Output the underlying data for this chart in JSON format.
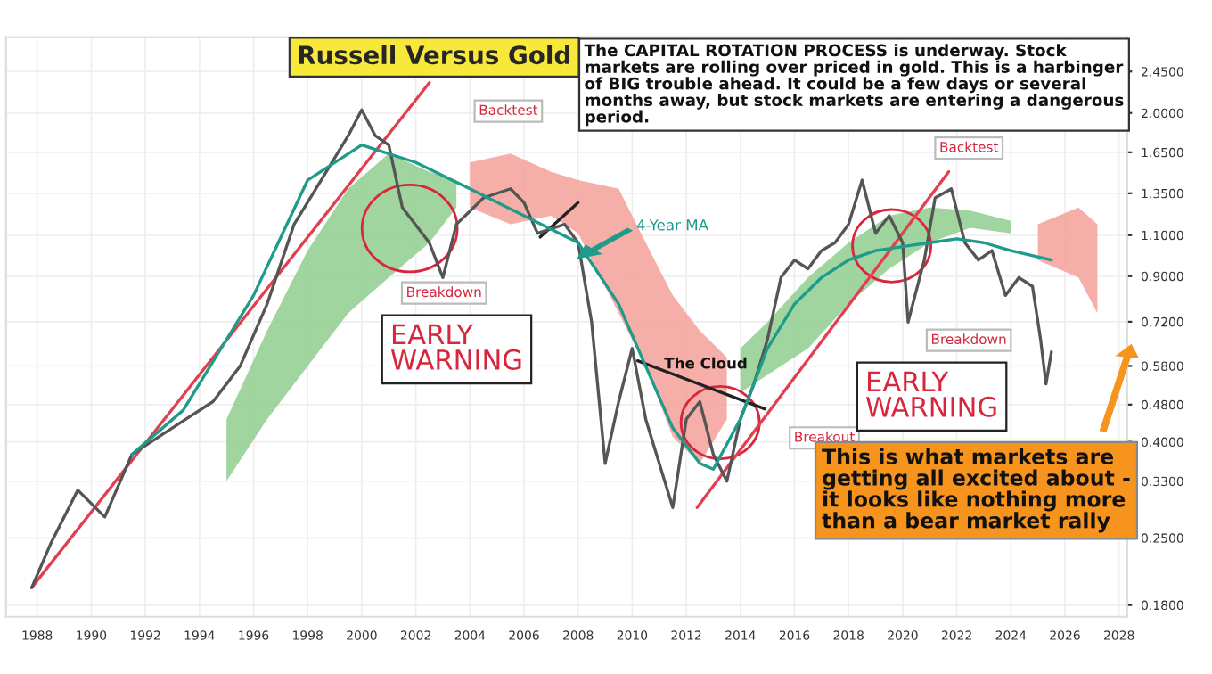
{
  "chart_data": {
    "type": "line",
    "title": "Russell Versus Gold",
    "log": true,
    "grid": true,
    "legend": false,
    "xlim": [
      1986.85,
      2028.3
    ],
    "xticks": [
      1988,
      1990,
      1992,
      1994,
      1996,
      1998,
      2000,
      2002,
      2004,
      2006,
      2008,
      2010,
      2012,
      2014,
      2016,
      2018,
      2020,
      2022,
      2024,
      2026,
      2028
    ],
    "ylim": [
      0.17,
      2.9
    ],
    "yticks": [
      {
        "value": 0.18,
        "label": "0.1800"
      },
      {
        "value": 0.25,
        "label": "0.2500"
      },
      {
        "value": 0.33,
        "label": "0.3300"
      },
      {
        "value": 0.4,
        "label": "0.4000"
      },
      {
        "value": 0.48,
        "label": "0.4800"
      },
      {
        "value": 0.58,
        "label": "0.5800"
      },
      {
        "value": 0.72,
        "label": "0.7200"
      },
      {
        "value": 0.9,
        "label": "0.9000"
      },
      {
        "value": 1.1,
        "label": "1.1000"
      },
      {
        "value": 1.35,
        "label": "1.3500"
      },
      {
        "value": 1.65,
        "label": "1.6500"
      },
      {
        "value": 2.0,
        "label": "2.0000"
      },
      {
        "value": 2.45,
        "label": "2.4500"
      }
    ],
    "series": [
      {
        "type": "area",
        "color": "#8fce8f",
        "x": [
          1995,
          1996.5,
          1998,
          1999.5,
          2001,
          2002.5,
          2003.5
        ],
        "values": [
          null,
          null,
          null,
          null,
          null,
          null,
          null
        ],
        "upper": [
          0.447,
          0.689,
          1.02,
          1.38,
          1.64,
          1.5,
          1.44
        ],
        "lower": [
          0.33,
          0.447,
          0.579,
          0.751,
          0.894,
          1.06,
          1.26
        ]
      },
      {
        "type": "area",
        "color": "#f4a09a",
        "x": [
          2004,
          2005.5,
          2007,
          2008,
          2009.5,
          2010.5,
          2011.5,
          2012.5,
          2013.5
        ],
        "values": [
          null,
          null,
          null,
          null,
          null,
          null,
          null,
          null,
          null
        ],
        "upper": [
          1.57,
          1.64,
          1.5,
          1.44,
          1.38,
          1.06,
          0.819,
          0.689,
          0.605
        ],
        "lower": [
          1.26,
          1.16,
          1.21,
          1.11,
          0.751,
          0.579,
          0.41,
          0.36,
          0.447
        ]
      },
      {
        "type": "area",
        "color": "#8fce8f",
        "x": [
          2014,
          2015,
          2016.5,
          2018,
          2019.5,
          2021,
          2022.5,
          2024
        ],
        "values": [
          null,
          null,
          null,
          null,
          null,
          null,
          null,
          null
        ],
        "upper": [
          0.632,
          0.719,
          0.894,
          1.06,
          1.21,
          1.26,
          1.24,
          1.18
        ],
        "lower": [
          0.509,
          0.555,
          0.632,
          0.785,
          0.933,
          1.06,
          1.14,
          1.11
        ]
      },
      {
        "type": "area",
        "color": "#f4a09a",
        "x": [
          2025,
          2026.5,
          2027.2
        ],
        "values": [
          null,
          null,
          null
        ],
        "upper": [
          1.16,
          1.26,
          1.16
        ],
        "lower": [
          0.974,
          0.894,
          0.751
        ]
      },
      {
        "color": "#e04050",
        "x": [
          1987.8,
          2002.5
        ],
        "values": [
          0.196,
          2.32
        ]
      },
      {
        "color": "#e04050",
        "x": [
          2012.4,
          2021.7
        ],
        "values": [
          0.29,
          1.5
        ]
      },
      {
        "color": "#222222",
        "x": [
          2006.6,
          2008.0
        ],
        "values": [
          1.09,
          1.29
        ]
      },
      {
        "color": "#222222",
        "x": [
          2010.2,
          2014.9
        ],
        "values": [
          0.595,
          0.47
        ]
      },
      {
        "color": "#555555",
        "x": [
          1987.8,
          1988.5,
          1989.5,
          1990.5,
          1991.5,
          1992.5,
          1993.5,
          1994.5,
          1995.5,
          1996.5,
          1997.5,
          1998.5,
          1999.5,
          2000.0,
          2000.5,
          2001,
          2001.5,
          2002.5,
          2003,
          2003.5,
          2004.5,
          2005.5,
          2006,
          2006.5,
          2007.5,
          2008,
          2008.5,
          2009,
          2009.5,
          2010,
          2010.5,
          2011.5,
          2012,
          2012.5,
          2013,
          2013.5,
          2014,
          2014.5,
          2015,
          2015.5,
          2016,
          2016.5,
          2017,
          2017.5,
          2018,
          2018.5,
          2019,
          2019.5,
          2020,
          2020.2,
          2020.8,
          2021.2,
          2021.8,
          2022.3,
          2022.8,
          2023.3,
          2023.8,
          2024.3,
          2024.8,
          2025.1,
          2025.3,
          2025.5
        ],
        "values": [
          0.196,
          0.243,
          0.316,
          0.277,
          0.376,
          0.41,
          0.447,
          0.487,
          0.579,
          0.785,
          1.16,
          1.44,
          1.79,
          2.03,
          1.79,
          1.71,
          1.26,
          1.06,
          0.894,
          1.16,
          1.32,
          1.38,
          1.29,
          1.11,
          1.16,
          1.06,
          0.719,
          0.36,
          0.487,
          0.632,
          0.447,
          0.29,
          0.447,
          0.487,
          0.376,
          0.33,
          0.447,
          0.531,
          0.66,
          0.894,
          0.974,
          0.933,
          1.02,
          1.06,
          1.16,
          1.44,
          1.11,
          1.21,
          1.06,
          0.719,
          0.974,
          1.32,
          1.38,
          1.06,
          0.974,
          1.02,
          0.819,
          0.894,
          0.856,
          0.66,
          0.531,
          0.621
        ]
      },
      {
        "color": "#1e9b8a",
        "x": [
          1991.5,
          1993.4,
          1996,
          1998,
          2000,
          2002,
          2004,
          2006,
          2008,
          2009.5,
          2010.5,
          2011.5,
          2012.5,
          2013,
          2014,
          2015,
          2016,
          2017,
          2018,
          2019,
          2020,
          2021,
          2022,
          2023,
          2024,
          2025.5
        ],
        "values": [
          0.376,
          0.467,
          0.819,
          1.44,
          1.71,
          1.57,
          1.38,
          1.21,
          1.06,
          0.785,
          0.579,
          0.428,
          0.36,
          0.35,
          0.447,
          0.632,
          0.785,
          0.894,
          0.974,
          1.02,
          1.04,
          1.06,
          1.08,
          1.06,
          1.02,
          0.974
        ]
      }
    ],
    "annotations": [
      "The CAPITAL ROTATION PROCESS is underway. Stock\nmarkets are rolling over priced in gold. This is a harbinger\nof BIG trouble ahead. It could be a few days or several\nmonths away, but stock markets are entering a dangerous\nperiod.",
      "Backtest",
      "Breakdown",
      "EARLY\nWARNING",
      "4-Year MA",
      "The Cloud",
      "Breakout",
      "EARLY\nWARNING",
      "Backtest",
      "Breakdown",
      "This is what markets are\ngetting all excited about -\nit looks like nothing more\nthan a bear market rally"
    ]
  }
}
